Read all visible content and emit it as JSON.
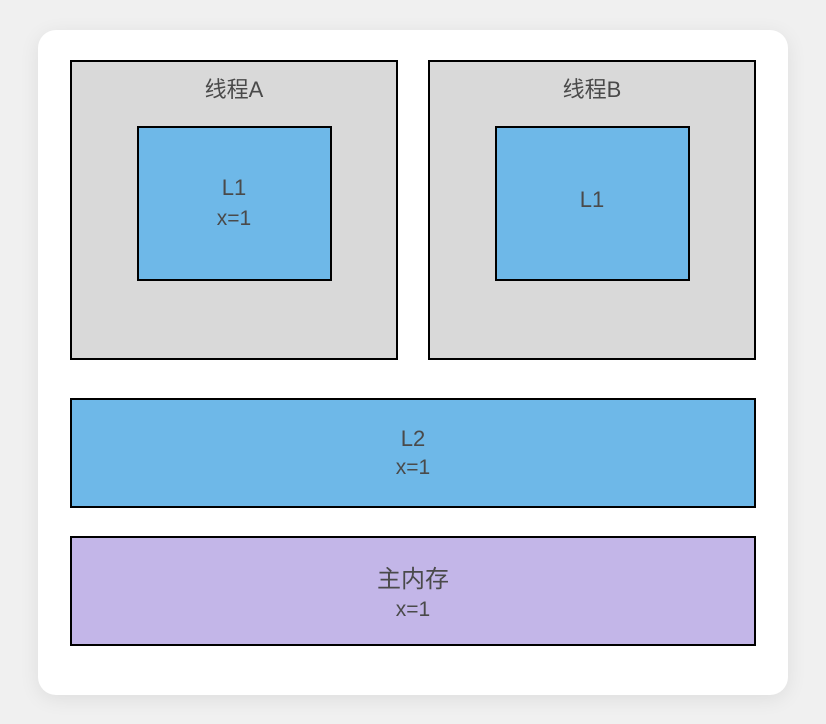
{
  "diagram": {
    "type": "block-diagram",
    "background_color": "#ffffff",
    "card_radius": 18,
    "border_color": "#000000",
    "border_width": 2.5,
    "text_color": "#4a4a4a",
    "font_size_title": 22,
    "font_size_body": 21,
    "colors": {
      "thread_bg": "#d9d9d9",
      "cache_bg": "#6eb8e8",
      "memory_bg": "#c3b6e8"
    },
    "threads": [
      {
        "title": "线程A",
        "l1": {
          "label": "L1",
          "value": "x=1"
        }
      },
      {
        "title": "线程B",
        "l1": {
          "label": "L1",
          "value": ""
        }
      }
    ],
    "l2": {
      "label": "L2",
      "value": "x=1"
    },
    "mem": {
      "label": "主内存",
      "value": "x=1"
    }
  }
}
